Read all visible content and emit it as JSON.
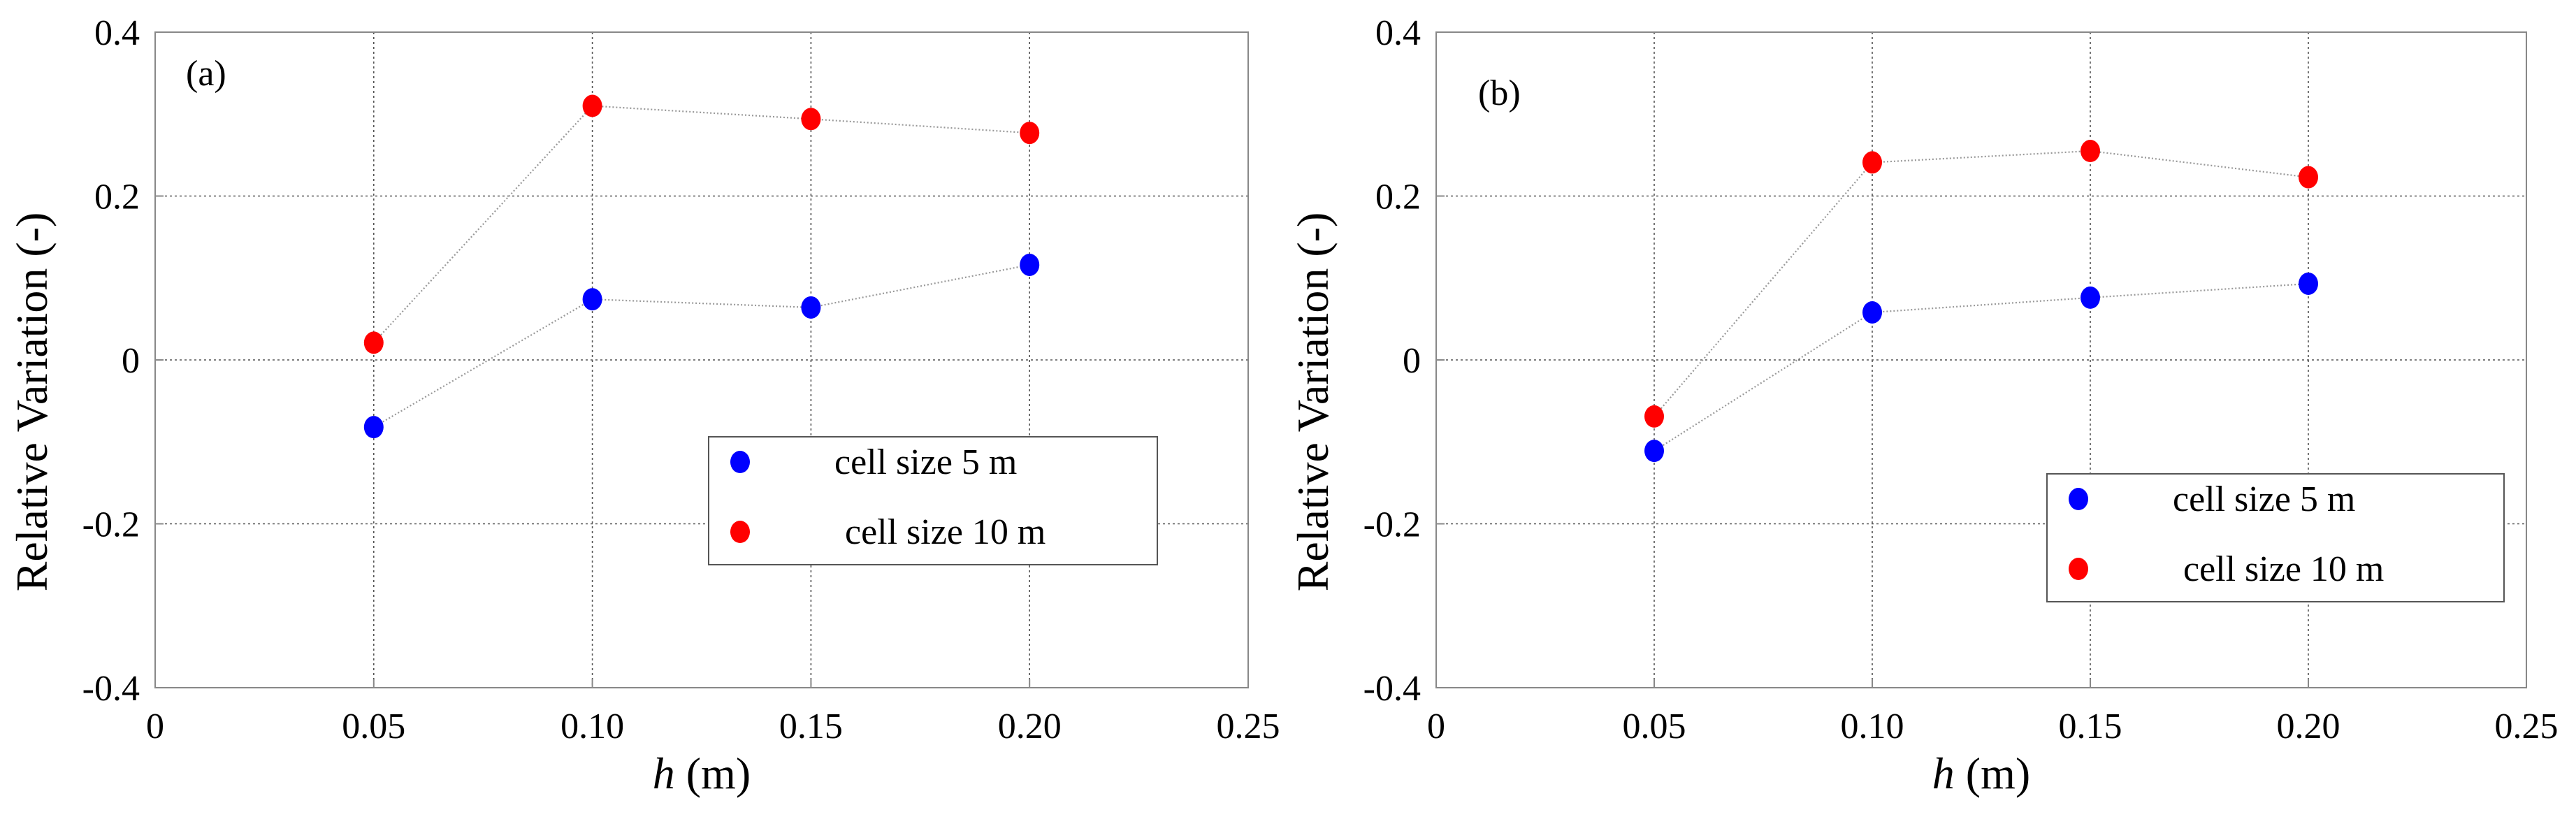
{
  "chart_data": [
    {
      "type": "scatter",
      "panel_label": "(a)",
      "xlabel_var": "h",
      "xlabel_unit": "(m)",
      "ylabel": "Relative Variation (-)",
      "xlim": [
        0,
        0.25
      ],
      "ylim": [
        -0.4,
        0.4
      ],
      "grid": true,
      "legend_position": "lower-right",
      "x_ticks": [
        {
          "value": 0,
          "label": "0"
        },
        {
          "value": 0.05,
          "label": "0.05"
        },
        {
          "value": 0.1,
          "label": "0.10"
        },
        {
          "value": 0.15,
          "label": "0.15"
        },
        {
          "value": 0.2,
          "label": "0.20"
        },
        {
          "value": 0.25,
          "label": "0.25"
        }
      ],
      "y_ticks": [
        {
          "value": 0.4,
          "label": "0.4"
        },
        {
          "value": 0.2,
          "label": "0.2"
        },
        {
          "value": 0,
          "label": "0"
        },
        {
          "value": -0.2,
          "label": "-0.2"
        },
        {
          "value": -0.4,
          "label": "-0.4"
        }
      ],
      "x": [
        0.05,
        0.1,
        0.15,
        0.2
      ],
      "series": [
        {
          "name": "cell size 5 m",
          "color": "#0000ff",
          "values": [
            -0.082,
            0.074,
            0.064,
            0.116
          ]
        },
        {
          "name": "cell size 10 m",
          "color": "#ff0000",
          "values": [
            0.021,
            0.31,
            0.294,
            0.277
          ]
        }
      ]
    },
    {
      "type": "scatter",
      "panel_label": "(b)",
      "xlabel_var": "h",
      "xlabel_unit": "(m)",
      "ylabel": "Relative Variation (-)",
      "xlim": [
        0,
        0.25
      ],
      "ylim": [
        -0.4,
        0.4
      ],
      "grid": true,
      "legend_position": "lower-right",
      "x_ticks": [
        {
          "value": 0,
          "label": "0"
        },
        {
          "value": 0.05,
          "label": "0.05"
        },
        {
          "value": 0.1,
          "label": "0.10"
        },
        {
          "value": 0.15,
          "label": "0.15"
        },
        {
          "value": 0.2,
          "label": "0.20"
        },
        {
          "value": 0.25,
          "label": "0.25"
        }
      ],
      "y_ticks": [
        {
          "value": 0.4,
          "label": "0.4"
        },
        {
          "value": 0.2,
          "label": "0.2"
        },
        {
          "value": 0,
          "label": "0"
        },
        {
          "value": -0.2,
          "label": "-0.2"
        },
        {
          "value": -0.4,
          "label": "-0.4"
        }
      ],
      "x": [
        0.05,
        0.1,
        0.15,
        0.2
      ],
      "series": [
        {
          "name": "cell size 5 m",
          "color": "#0000ff",
          "values": [
            -0.111,
            0.058,
            0.076,
            0.093
          ]
        },
        {
          "name": "cell size 10 m",
          "color": "#ff0000",
          "values": [
            -0.069,
            0.241,
            0.255,
            0.223
          ]
        }
      ]
    }
  ]
}
